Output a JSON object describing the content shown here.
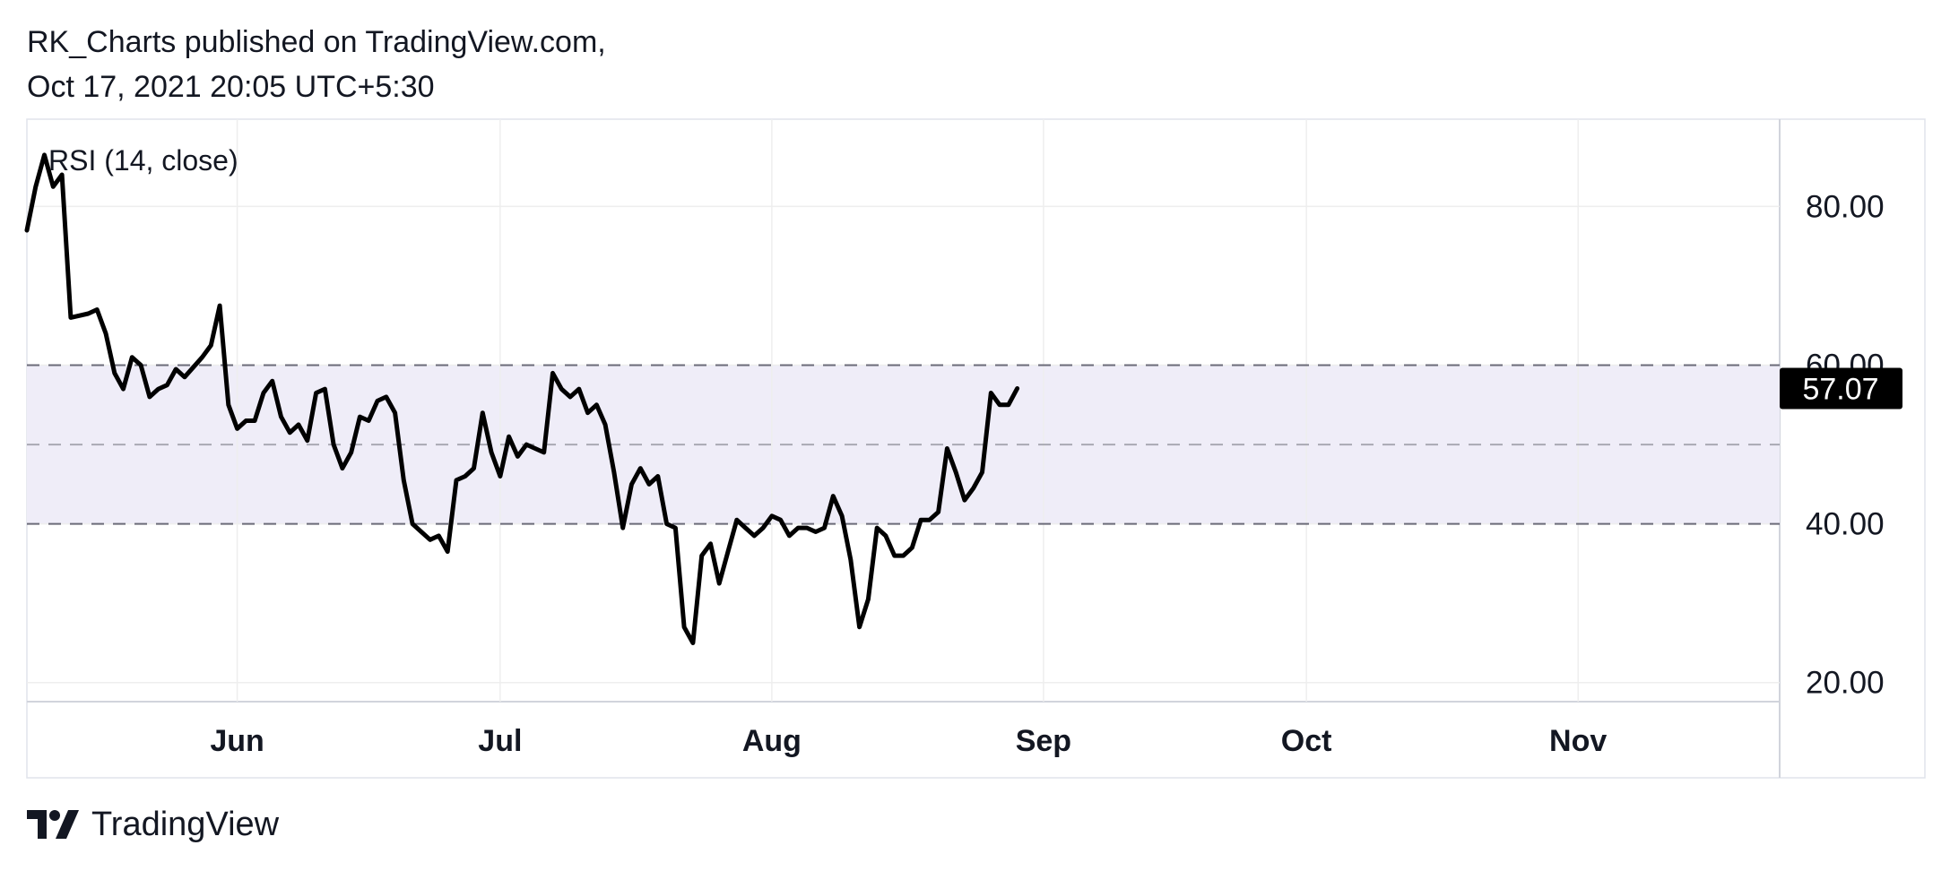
{
  "header": {
    "line1": "RK_Charts published on TradingView.com,",
    "line2": "Oct 17, 2021 20:05 UTC+5:30"
  },
  "footer": {
    "brand": "TradingView",
    "logo_icon": "tradingview-logo-icon"
  },
  "colors": {
    "line": "#000000",
    "band_fill": "#efedf8",
    "band_line": "#6b6b78",
    "mid_line": "#a9a9b3",
    "grid": "#eeeeee",
    "badge_bg": "#000000",
    "badge_text": "#ffffff"
  },
  "chart_data": {
    "type": "line",
    "indicator_label": "RSI (14, close)",
    "x_tick_labels": [
      "Jun",
      "Jul",
      "Aug",
      "Sep",
      "Oct",
      "Nov"
    ],
    "x_ticks": [
      "2021-06-01",
      "2021-07-01",
      "2021-08-01",
      "2021-09-01",
      "2021-10-01",
      "2021-11-01"
    ],
    "xlim": [
      "2021-05-08",
      "2021-11-24"
    ],
    "y_tick_labels": [
      "80.00",
      "60.00",
      "40.00",
      "20.00"
    ],
    "y_ticks": [
      80,
      60,
      40,
      20
    ],
    "ylim": [
      17.6,
      91
    ],
    "bands": {
      "upper": 60,
      "middle": 50,
      "lower": 40
    },
    "last_value_label": "57.07",
    "last_value": 57.07,
    "grid": true,
    "series": [
      {
        "points": [
          [
            "2021-05-08",
            77.0
          ],
          [
            "2021-05-09",
            82.5
          ],
          [
            "2021-05-10",
            86.5
          ],
          [
            "2021-05-11",
            82.5
          ],
          [
            "2021-05-12",
            84.0
          ],
          [
            "2021-05-13",
            66.0
          ],
          [
            "2021-05-15",
            66.5
          ],
          [
            "2021-05-16",
            67.0
          ],
          [
            "2021-05-17",
            64.0
          ],
          [
            "2021-05-18",
            59.0
          ],
          [
            "2021-05-19",
            57.0
          ],
          [
            "2021-05-20",
            61.0
          ],
          [
            "2021-05-21",
            60.0
          ],
          [
            "2021-05-22",
            56.0
          ],
          [
            "2021-05-23",
            57.0
          ],
          [
            "2021-05-24",
            57.5
          ],
          [
            "2021-05-25",
            59.5
          ],
          [
            "2021-05-26",
            58.5
          ],
          [
            "2021-05-28",
            61.0
          ],
          [
            "2021-05-29",
            62.5
          ],
          [
            "2021-05-30",
            67.5
          ],
          [
            "2021-05-31",
            55.0
          ],
          [
            "2021-06-01",
            52.0
          ],
          [
            "2021-06-02",
            53.0
          ],
          [
            "2021-06-03",
            53.0
          ],
          [
            "2021-06-04",
            56.5
          ],
          [
            "2021-06-05",
            58.0
          ],
          [
            "2021-06-06",
            53.5
          ],
          [
            "2021-06-07",
            51.5
          ],
          [
            "2021-06-08",
            52.5
          ],
          [
            "2021-06-09",
            50.5
          ],
          [
            "2021-06-10",
            56.5
          ],
          [
            "2021-06-11",
            57.0
          ],
          [
            "2021-06-12",
            50.0
          ],
          [
            "2021-06-13",
            47.0
          ],
          [
            "2021-06-14",
            49.0
          ],
          [
            "2021-06-15",
            53.5
          ],
          [
            "2021-06-16",
            53.0
          ],
          [
            "2021-06-17",
            55.5
          ],
          [
            "2021-06-18",
            56.0
          ],
          [
            "2021-06-19",
            54.0
          ],
          [
            "2021-06-20",
            45.5
          ],
          [
            "2021-06-21",
            40.0
          ],
          [
            "2021-06-22",
            39.0
          ],
          [
            "2021-06-23",
            38.0
          ],
          [
            "2021-06-24",
            38.5
          ],
          [
            "2021-06-25",
            36.5
          ],
          [
            "2021-06-26",
            45.5
          ],
          [
            "2021-06-27",
            46.0
          ],
          [
            "2021-06-28",
            47.0
          ],
          [
            "2021-06-29",
            54.0
          ],
          [
            "2021-06-30",
            49.0
          ],
          [
            "2021-07-01",
            46.0
          ],
          [
            "2021-07-02",
            51.0
          ],
          [
            "2021-07-03",
            48.5
          ],
          [
            "2021-07-04",
            50.0
          ],
          [
            "2021-07-05",
            49.5
          ],
          [
            "2021-07-06",
            49.0
          ],
          [
            "2021-07-07",
            59.0
          ],
          [
            "2021-07-08",
            57.0
          ],
          [
            "2021-07-09",
            56.0
          ],
          [
            "2021-07-10",
            57.0
          ],
          [
            "2021-07-11",
            54.0
          ],
          [
            "2021-07-12",
            55.0
          ],
          [
            "2021-07-13",
            52.5
          ],
          [
            "2021-07-14",
            46.5
          ],
          [
            "2021-07-15",
            39.5
          ],
          [
            "2021-07-16",
            45.0
          ],
          [
            "2021-07-17",
            47.0
          ],
          [
            "2021-07-18",
            45.0
          ],
          [
            "2021-07-19",
            46.0
          ],
          [
            "2021-07-20",
            40.0
          ],
          [
            "2021-07-21",
            39.5
          ],
          [
            "2021-07-22",
            27.0
          ],
          [
            "2021-07-23",
            25.0
          ],
          [
            "2021-07-24",
            36.0
          ],
          [
            "2021-07-25",
            37.5
          ],
          [
            "2021-07-26",
            32.5
          ],
          [
            "2021-07-27",
            36.5
          ],
          [
            "2021-07-28",
            40.5
          ],
          [
            "2021-07-29",
            39.5
          ],
          [
            "2021-07-30",
            38.5
          ],
          [
            "2021-07-31",
            39.5
          ],
          [
            "2021-08-01",
            41.0
          ],
          [
            "2021-08-02",
            40.5
          ],
          [
            "2021-08-03",
            38.5
          ],
          [
            "2021-08-04",
            39.5
          ],
          [
            "2021-08-05",
            39.5
          ],
          [
            "2021-08-06",
            39.0
          ],
          [
            "2021-08-07",
            39.5
          ],
          [
            "2021-08-08",
            43.5
          ],
          [
            "2021-08-09",
            41.0
          ],
          [
            "2021-08-10",
            35.5
          ],
          [
            "2021-08-11",
            27.0
          ],
          [
            "2021-08-12",
            30.5
          ],
          [
            "2021-08-13",
            39.5
          ],
          [
            "2021-08-14",
            38.5
          ],
          [
            "2021-08-15",
            36.0
          ],
          [
            "2021-08-16",
            36.0
          ],
          [
            "2021-08-17",
            37.0
          ],
          [
            "2021-08-18",
            40.5
          ],
          [
            "2021-08-19",
            40.5
          ],
          [
            "2021-08-20",
            41.5
          ],
          [
            "2021-08-21",
            49.5
          ],
          [
            "2021-08-22",
            46.5
          ],
          [
            "2021-08-23",
            43.0
          ],
          [
            "2021-08-24",
            44.5
          ],
          [
            "2021-08-25",
            46.5
          ],
          [
            "2021-08-26",
            56.5
          ],
          [
            "2021-08-27",
            55.0
          ],
          [
            "2021-08-28",
            55.0
          ],
          [
            "2021-08-29",
            57.07
          ]
        ]
      }
    ]
  }
}
